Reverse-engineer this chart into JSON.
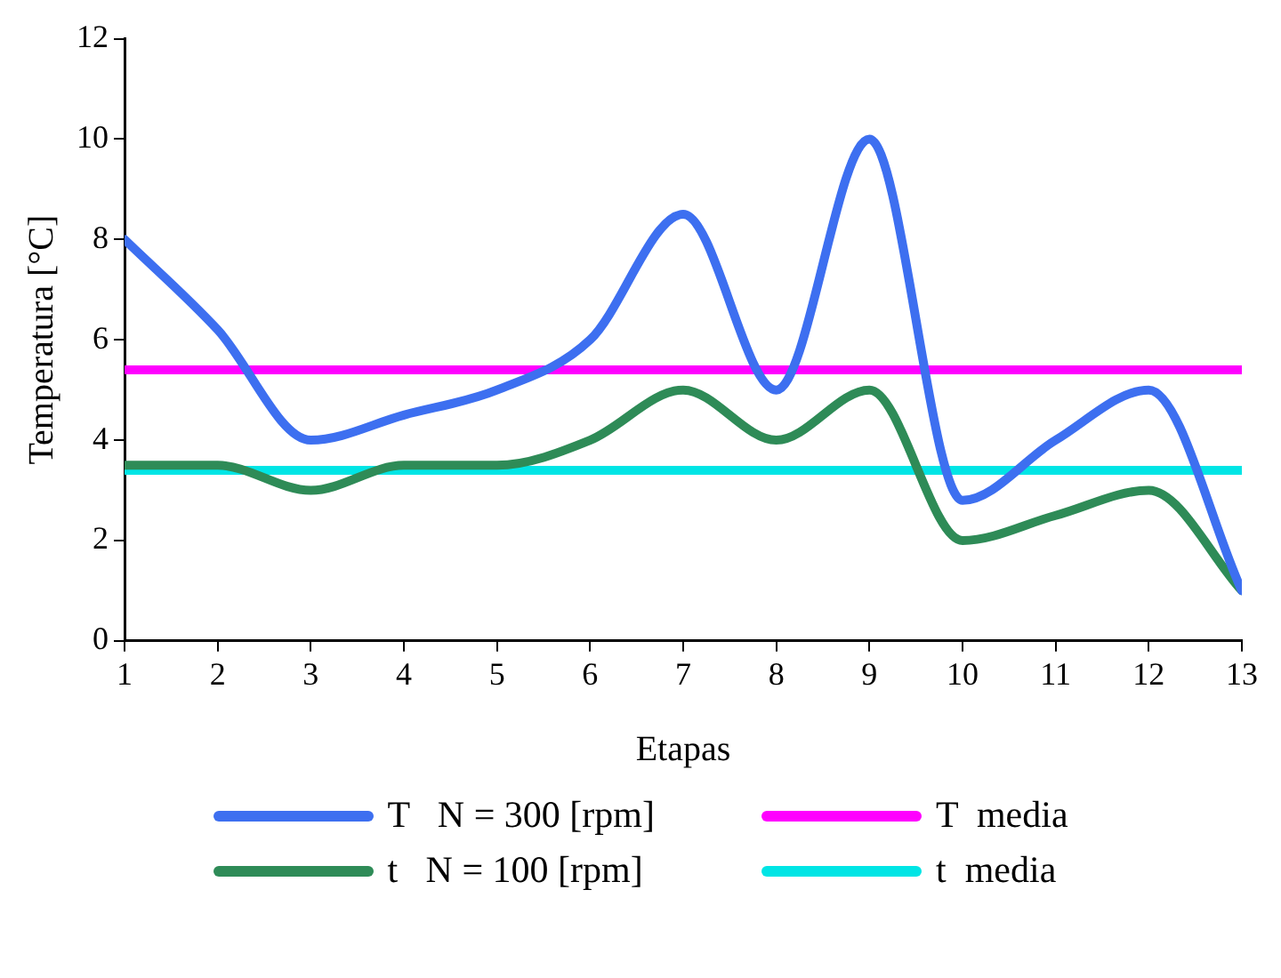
{
  "chart_data": {
    "type": "line",
    "xlabel": "Etapas",
    "ylabel": "Temperatura [°C]",
    "x": [
      1,
      2,
      3,
      4,
      5,
      6,
      7,
      8,
      9,
      10,
      11,
      12,
      13
    ],
    "series": [
      {
        "name": "T   N = 300 [rpm]",
        "color": "#3d6ff0",
        "values": [
          8,
          6.2,
          4,
          4.5,
          5,
          6,
          8.5,
          5,
          10,
          2.8,
          4,
          5,
          1
        ]
      },
      {
        "name": "t   N = 100 [rpm]",
        "color": "#2e8b57",
        "values": [
          3.5,
          3.5,
          3,
          3.5,
          3.5,
          4,
          5,
          4,
          5,
          2,
          2.5,
          3,
          1
        ]
      }
    ],
    "ref_lines": [
      {
        "axis": "y",
        "value": 5.4,
        "label": "T  media",
        "color": "#ff00ff"
      },
      {
        "axis": "y",
        "value": 3.4,
        "label": "t  media",
        "color": "#00e5e5"
      }
    ],
    "xlim": [
      1,
      13
    ],
    "xticks": [
      1,
      2,
      3,
      4,
      5,
      6,
      7,
      8,
      9,
      10,
      11,
      12,
      13
    ],
    "ylim": [
      0,
      12
    ],
    "yticks": [
      0,
      2,
      4,
      6,
      8,
      10,
      12
    ],
    "grid": false,
    "legend": "bottom",
    "marker": "none",
    "line_style": "solid"
  }
}
